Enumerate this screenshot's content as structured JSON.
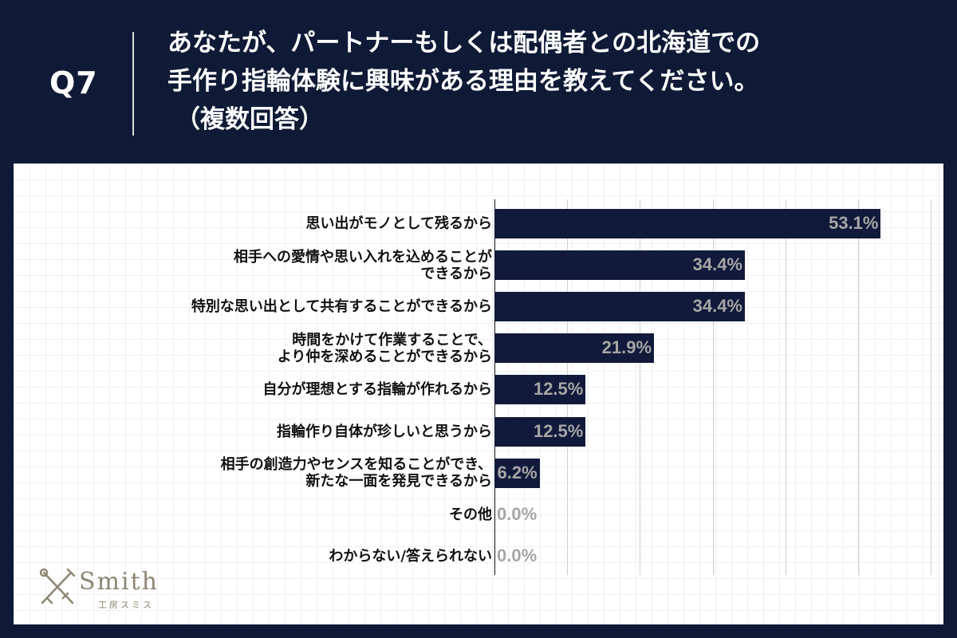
{
  "header": {
    "q_number": "Q7",
    "question_lines": [
      "あなたが、パートナーもしくは配偶者との北海道での",
      "手作り指輪体験に興味がある理由を教えてください。",
      "（複数回答）"
    ]
  },
  "chart_data": {
    "type": "bar",
    "orientation": "horizontal",
    "categories": [
      "思い出がモノとして残るから",
      "相手への愛情や思い入れを込めることが\nできるから",
      "特別な思い出として共有することができるから",
      "時間をかけて作業することで、\nより仲を深めることができるから",
      "自分が理想とする指輪が作れるから",
      "指輪作り自体が珍しいと思うから",
      "相手の創造力やセンスを知ることができ、\n新たな一面を発見できるから",
      "その他",
      "わからない/答えられない"
    ],
    "values": [
      53.1,
      34.4,
      34.4,
      21.9,
      12.5,
      12.5,
      6.2,
      0.0,
      0.0
    ],
    "value_labels": [
      "53.1%",
      "34.4%",
      "34.4%",
      "21.9%",
      "12.5%",
      "12.5%",
      "6.2%",
      "0.0%",
      "0.0%"
    ],
    "xlim": [
      0,
      60
    ],
    "grid": true,
    "bar_color": "#111a3a",
    "value_label_color": "#a6a6a6"
  },
  "logo": {
    "name": "Smith",
    "sub": "工房スミス"
  },
  "colors": {
    "background": "#0f1a36",
    "panel": "#ffffff",
    "accent": "#8f8673"
  }
}
